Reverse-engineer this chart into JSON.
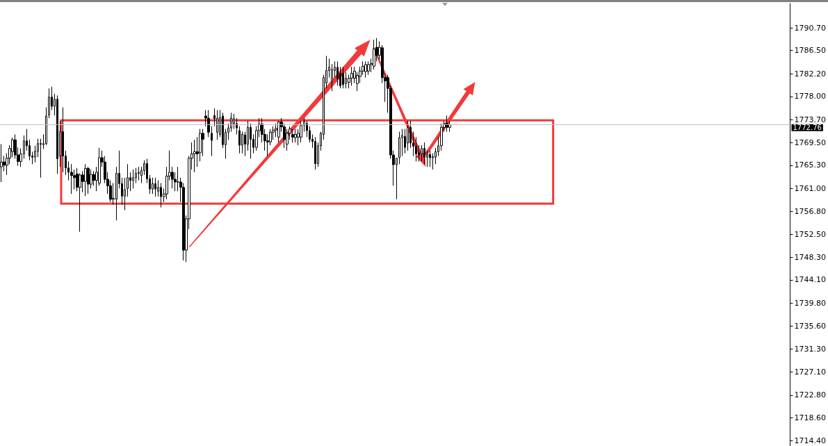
{
  "chart_data": {
    "type": "candlestick",
    "categories": [
      null,
      null,
      null,
      null,
      null,
      null,
      null,
      null,
      null,
      null,
      null,
      null,
      null,
      null,
      null,
      null,
      null,
      null,
      null,
      null,
      null,
      null,
      null,
      null,
      null,
      null,
      null,
      null,
      null,
      null,
      null,
      null,
      null,
      null,
      null,
      null,
      null,
      null,
      null,
      null,
      null,
      null,
      null,
      null,
      null,
      null,
      null,
      null,
      null,
      null,
      null,
      null,
      null,
      null,
      null,
      null,
      null,
      null,
      null,
      null,
      null,
      null,
      null,
      null,
      null,
      null,
      null,
      null,
      null,
      null,
      null,
      null,
      null,
      null,
      null,
      null,
      null,
      null,
      null,
      null,
      null,
      null,
      null,
      null,
      null,
      null,
      null,
      null,
      null,
      null,
      null,
      null,
      null,
      null,
      null,
      null,
      null,
      null,
      null,
      null,
      null,
      null,
      null,
      null,
      null,
      null,
      null,
      null,
      null,
      null,
      null,
      null,
      null,
      null,
      null,
      null,
      null,
      null,
      null,
      null,
      null,
      null,
      null,
      null,
      null,
      null,
      null,
      null,
      null,
      null,
      null,
      null,
      null,
      null,
      null,
      null,
      null,
      null,
      null,
      null,
      null,
      null,
      null,
      null,
      null,
      null,
      null,
      null,
      null,
      null,
      null,
      null,
      null,
      null,
      null,
      null,
      null,
      null,
      null,
      null,
      null,
      null,
      null,
      null,
      null,
      null,
      null,
      null,
      null,
      null,
      null,
      null,
      null,
      null,
      null,
      null,
      null,
      null,
      null,
      null,
      null,
      null,
      null,
      null,
      null,
      null,
      null,
      null,
      null,
      null,
      null,
      null,
      null,
      null,
      null,
      null,
      null,
      null,
      null,
      null,
      null,
      null,
      null,
      null,
      null,
      null,
      null,
      null,
      null,
      null,
      null,
      null,
      null,
      null,
      null,
      null,
      null,
      null,
      null,
      null,
      null,
      null,
      null,
      null,
      null,
      null,
      null,
      null,
      null,
      null,
      null,
      null,
      null,
      null,
      null,
      null,
      null,
      null,
      null,
      null,
      null,
      null,
      null,
      null,
      null,
      null,
      null,
      null,
      null,
      null,
      null,
      null,
      null,
      null,
      null,
      null,
      null,
      null,
      null,
      null,
      null,
      null,
      null,
      null,
      null,
      null,
      null,
      null,
      null,
      null,
      null,
      null,
      null,
      null,
      null,
      null,
      null,
      null,
      null,
      null,
      null,
      null
    ],
    "ohlc": [
      [
        1765.0,
        1769.2,
        1762.2,
        1765.9
      ],
      [
        1765.9,
        1767.0,
        1764.2,
        1765.3
      ],
      [
        1765.3,
        1767.5,
        1763.5,
        1766.6
      ],
      [
        1766.6,
        1769.0,
        1765.5,
        1768.4
      ],
      [
        1767.8,
        1770.4,
        1766.8,
        1770.0
      ],
      [
        1770.0,
        1771.0,
        1766.5,
        1767.2
      ],
      [
        1767.2,
        1768.6,
        1765.2,
        1766.0
      ],
      [
        1766.0,
        1768.4,
        1765.0,
        1767.4
      ],
      [
        1767.4,
        1770.8,
        1766.5,
        1769.8
      ],
      [
        1769.8,
        1772.0,
        1768.0,
        1768.9
      ],
      [
        1768.9,
        1770.0,
        1766.2,
        1767.0
      ],
      [
        1767.0,
        1767.8,
        1765.5,
        1766.8
      ],
      [
        1766.8,
        1768.9,
        1765.8,
        1767.9
      ],
      [
        1767.9,
        1770.2,
        1766.8,
        1769.3
      ],
      [
        1769.3,
        1770.2,
        1763.0,
        1769.2
      ],
      [
        1769.1,
        1771.0,
        1768.3,
        1769.3
      ],
      [
        1769.3,
        1776.0,
        1769.0,
        1774.4
      ],
      [
        1774.6,
        1779.5,
        1774.0,
        1777.9
      ],
      [
        1777.9,
        1779.8,
        1775.5,
        1776.2
      ],
      [
        1776.2,
        1778.5,
        1774.5,
        1777.5
      ],
      [
        1777.5,
        1778.2,
        1763.7,
        1766.5
      ],
      [
        1767.0,
        1773.5,
        1765.0,
        1771.5
      ],
      [
        1771.5,
        1776.0,
        1764.0,
        1767.0
      ],
      [
        1767.0,
        1768.0,
        1763.5,
        1764.8
      ],
      [
        1764.8,
        1766.0,
        1762.5,
        1764.0
      ],
      [
        1764.0,
        1765.5,
        1760.0,
        1763.4
      ],
      [
        1763.4,
        1764.5,
        1760.8,
        1763.0
      ],
      [
        1763.7,
        1764.8,
        1760.5,
        1761.2
      ],
      [
        1761.2,
        1763.8,
        1753.0,
        1763.5
      ],
      [
        1763.5,
        1764.2,
        1760.3,
        1762.3
      ],
      [
        1762.3,
        1765.5,
        1759.6,
        1764.7
      ],
      [
        1764.7,
        1765.0,
        1760.0,
        1761.8
      ],
      [
        1761.8,
        1764.5,
        1761.0,
        1763.6
      ],
      [
        1763.6,
        1764.2,
        1761.5,
        1762.5
      ],
      [
        1762.5,
        1765.0,
        1760.5,
        1764.0
      ],
      [
        1762.0,
        1768.5,
        1761.5,
        1766.7
      ],
      [
        1766.7,
        1768.0,
        1765.0,
        1765.9
      ],
      [
        1765.9,
        1767.0,
        1762.0,
        1762.7
      ],
      [
        1762.7,
        1764.0,
        1760.0,
        1761.5
      ],
      [
        1761.5,
        1762.5,
        1758.5,
        1759.0
      ],
      [
        1759.0,
        1762.0,
        1758.0,
        1759.2
      ],
      [
        1759.0,
        1765.0,
        1755.1,
        1763.8
      ],
      [
        1763.8,
        1768.0,
        1761.0,
        1761.9
      ],
      [
        1761.9,
        1763.0,
        1758.0,
        1759.6
      ],
      [
        1759.6,
        1763.0,
        1757.0,
        1760.8
      ],
      [
        1761.0,
        1765.5,
        1759.5,
        1763.0
      ],
      [
        1763.0,
        1764.0,
        1760.5,
        1762.5
      ],
      [
        1762.5,
        1764.5,
        1761.0,
        1763.0
      ],
      [
        1763.0,
        1764.8,
        1762.0,
        1763.8
      ],
      [
        1763.8,
        1765.0,
        1762.5,
        1764.0
      ],
      [
        1763.4,
        1765.0,
        1762.0,
        1764.3
      ],
      [
        1764.3,
        1766.2,
        1763.5,
        1765.6
      ],
      [
        1765.6,
        1766.5,
        1762.0,
        1762.8
      ],
      [
        1762.8,
        1763.5,
        1760.0,
        1760.9
      ],
      [
        1760.9,
        1763.0,
        1760.0,
        1761.9
      ],
      [
        1761.9,
        1763.0,
        1759.5,
        1760.9
      ],
      [
        1760.5,
        1762.5,
        1759.5,
        1761.2
      ],
      [
        1761.2,
        1762.0,
        1757.5,
        1759.5
      ],
      [
        1759.5,
        1761.0,
        1758.5,
        1760.0
      ],
      [
        1760.0,
        1765.0,
        1759.0,
        1763.3
      ],
      [
        1763.3,
        1768.0,
        1762.5,
        1764.0
      ],
      [
        1764.0,
        1765.0,
        1761.0,
        1762.7
      ],
      [
        1762.7,
        1764.0,
        1760.5,
        1762.2
      ],
      [
        1762.2,
        1765.0,
        1760.5,
        1762.2
      ],
      [
        1762.2,
        1763.0,
        1758.5,
        1761.2
      ],
      [
        1761.2,
        1762.0,
        1747.7,
        1749.6
      ],
      [
        1749.6,
        1756.0,
        1747.4,
        1755.4
      ],
      [
        1755.4,
        1767.0,
        1753.5,
        1766.6
      ],
      [
        1766.6,
        1769.5,
        1764.5,
        1767.4
      ],
      [
        1767.4,
        1770.0,
        1764.0,
        1767.8
      ],
      [
        1767.8,
        1770.5,
        1765.0,
        1767.4
      ],
      [
        1767.6,
        1772.0,
        1766.0,
        1771.2
      ],
      [
        1771.2,
        1772.0,
        1767.0,
        1770.1
      ],
      [
        1774.4,
        1775.5,
        1772.5,
        1774.0
      ],
      [
        1774.0,
        1775.5,
        1770.5,
        1771.4
      ],
      [
        1771.2,
        1772.5,
        1767.0,
        1769.9
      ],
      [
        1774.5,
        1775.8,
        1772.5,
        1773.9
      ],
      [
        1771.4,
        1775.5,
        1770.0,
        1774.0
      ],
      [
        1771.0,
        1775.5,
        1770.5,
        1774.1
      ],
      [
        1774.4,
        1775.0,
        1768.5,
        1769.1
      ],
      [
        1769.1,
        1772.0,
        1766.5,
        1771.4
      ],
      [
        1771.4,
        1773.0,
        1770.0,
        1772.2
      ],
      [
        1772.2,
        1775.0,
        1771.5,
        1774.0
      ],
      [
        1773.0,
        1774.8,
        1772.0,
        1773.9
      ],
      [
        1773.0,
        1774.0,
        1771.0,
        1772.2
      ],
      [
        1771.7,
        1772.5,
        1767.5,
        1769.0
      ],
      [
        1769.0,
        1771.5,
        1767.5,
        1771.0
      ],
      [
        1770.9,
        1771.5,
        1767.0,
        1769.2
      ],
      [
        1769.2,
        1773.5,
        1768.0,
        1772.3
      ],
      [
        1772.3,
        1773.0,
        1766.5,
        1770.1
      ],
      [
        1770.1,
        1771.0,
        1767.5,
        1768.6
      ],
      [
        1768.6,
        1772.5,
        1768.0,
        1771.7
      ],
      [
        1771.7,
        1774.0,
        1770.5,
        1772.9
      ],
      [
        1772.9,
        1774.0,
        1769.5,
        1771.0
      ],
      [
        1771.0,
        1772.0,
        1768.0,
        1769.8
      ],
      [
        1769.8,
        1771.0,
        1767.0,
        1769.6
      ],
      [
        1769.6,
        1772.0,
        1769.0,
        1771.4
      ],
      [
        1771.4,
        1772.5,
        1770.0,
        1771.8
      ],
      [
        1771.8,
        1773.0,
        1770.5,
        1772.1
      ],
      [
        1770.5,
        1773.5,
        1769.5,
        1773.3
      ],
      [
        1773.3,
        1774.0,
        1771.5,
        1772.4
      ],
      [
        1772.4,
        1773.0,
        1768.5,
        1770.1
      ],
      [
        1769.2,
        1772.0,
        1768.0,
        1771.2
      ],
      [
        1771.2,
        1772.5,
        1770.0,
        1772.0
      ],
      [
        1771.0,
        1772.0,
        1769.5,
        1770.5
      ],
      [
        1770.4,
        1772.0,
        1769.5,
        1771.0
      ],
      [
        1770.5,
        1772.0,
        1769.0,
        1771.2
      ],
      [
        1770.5,
        1773.5,
        1769.5,
        1772.7
      ],
      [
        1772.7,
        1774.0,
        1771.5,
        1773.4
      ],
      [
        1773.0,
        1773.5,
        1770.5,
        1771.7
      ],
      [
        1771.7,
        1772.5,
        1769.5,
        1770.1
      ],
      [
        1770.1,
        1771.0,
        1768.5,
        1769.7
      ],
      [
        1769.7,
        1770.5,
        1764.5,
        1765.6
      ],
      [
        1765.6,
        1769.5,
        1765.0,
        1768.9
      ],
      [
        1768.9,
        1771.5,
        1768.0,
        1771.2
      ],
      [
        1771.0,
        1782.0,
        1770.0,
        1781.5
      ],
      [
        1780.5,
        1785.5,
        1779.5,
        1782.8
      ],
      [
        1782.8,
        1785.0,
        1781.5,
        1783.4
      ],
      [
        1780.8,
        1784.0,
        1779.0,
        1783.0
      ],
      [
        1782.8,
        1784.5,
        1781.5,
        1783.4
      ],
      [
        1783.4,
        1784.5,
        1780.0,
        1781.3
      ],
      [
        1782.3,
        1783.5,
        1779.5,
        1780.0
      ],
      [
        1782.3,
        1783.5,
        1779.5,
        1780.2
      ],
      [
        1780.4,
        1782.5,
        1779.5,
        1781.4
      ],
      [
        1780.6,
        1782.0,
        1779.5,
        1781.4
      ],
      [
        1781.4,
        1783.5,
        1780.0,
        1782.3
      ],
      [
        1781.4,
        1783.5,
        1780.5,
        1782.7
      ],
      [
        1780.4,
        1782.5,
        1779.0,
        1781.9
      ],
      [
        1781.7,
        1783.5,
        1780.5,
        1782.7
      ],
      [
        1782.7,
        1784.5,
        1782.0,
        1783.6
      ],
      [
        1782.6,
        1784.5,
        1781.5,
        1783.9
      ],
      [
        1782.7,
        1784.5,
        1782.0,
        1783.9
      ],
      [
        1783.9,
        1785.0,
        1782.5,
        1784.1
      ],
      [
        1783.6,
        1788.5,
        1783.0,
        1786.8
      ],
      [
        1787.1,
        1788.8,
        1784.5,
        1785.6
      ],
      [
        1785.6,
        1788.2,
        1784.8,
        1787.1
      ],
      [
        1787.0,
        1787.5,
        1780.5,
        1781.5
      ],
      [
        1781.5,
        1782.3,
        1777.0,
        1780.9
      ],
      [
        1781.5,
        1782.0,
        1775.0,
        1779.5
      ],
      [
        1779.5,
        1780.0,
        1766.5,
        1767.2
      ],
      [
        1767.2,
        1768.0,
        1761.5,
        1765.4
      ],
      [
        1765.4,
        1766.6,
        1759.0,
        1766.6
      ],
      [
        1766.7,
        1771.5,
        1765.5,
        1770.4
      ],
      [
        1770.4,
        1772.0,
        1767.0,
        1770.8
      ],
      [
        1770.6,
        1772.0,
        1767.5,
        1768.6
      ],
      [
        1769.4,
        1773.5,
        1768.0,
        1772.3
      ],
      [
        1772.3,
        1773.5,
        1768.5,
        1769.4
      ],
      [
        1769.4,
        1771.5,
        1767.0,
        1768.8
      ],
      [
        1768.8,
        1770.5,
        1766.0,
        1767.4
      ],
      [
        1767.6,
        1769.0,
        1766.0,
        1767.2
      ],
      [
        1767.4,
        1769.0,
        1766.0,
        1768.4
      ],
      [
        1768.4,
        1769.5,
        1765.5,
        1766.8
      ],
      [
        1766.8,
        1768.0,
        1765.0,
        1767.3
      ],
      [
        1767.3,
        1768.0,
        1765.0,
        1766.7
      ],
      [
        1766.7,
        1767.5,
        1764.5,
        1766.9
      ],
      [
        1766.8,
        1768.5,
        1765.5,
        1767.8
      ],
      [
        1767.8,
        1770.5,
        1767.0,
        1768.9
      ],
      [
        1768.9,
        1773.0,
        1768.0,
        1772.3
      ],
      [
        1772.3,
        1773.5,
        1771.5,
        1772.9
      ],
      [
        1773.0,
        1774.5,
        1771.5,
        1772.3
      ],
      [
        1772.3,
        1773.5,
        1771.5,
        1772.8
      ],
      null,
      null,
      null,
      null,
      null,
      null,
      null,
      null,
      null,
      null,
      null,
      null,
      null,
      null,
      null,
      null,
      null,
      null,
      null,
      null,
      null,
      null,
      null,
      null,
      null,
      null,
      null,
      null,
      null,
      null,
      null,
      null,
      null,
      null,
      null,
      null,
      null,
      null,
      null,
      null,
      null,
      null,
      null,
      null,
      null,
      null,
      null,
      null,
      null,
      null,
      null,
      null,
      null,
      null,
      null,
      null,
      null,
      null,
      null,
      null,
      null,
      null,
      null,
      null,
      null,
      null,
      null,
      null,
      null,
      null,
      null,
      null,
      null,
      null,
      null,
      null,
      null,
      null,
      null,
      null,
      null,
      null,
      null,
      null,
      null,
      null,
      null,
      null,
      null,
      null,
      null,
      null,
      null,
      null,
      null,
      null,
      null,
      null,
      null,
      null,
      null,
      null,
      null,
      null,
      null,
      null,
      null,
      null,
      null,
      null,
      null,
      null,
      null,
      null,
      null,
      null,
      null,
      null,
      null,
      null,
      null
    ],
    "ylim": [
      1713.4,
      1795.2
    ],
    "yticks": [
      {
        "value": 1790.7,
        "label": "1790.70"
      },
      {
        "value": 1786.5,
        "label": "1786.50"
      },
      {
        "value": 1782.2,
        "label": "1782.20"
      },
      {
        "value": 1778.0,
        "label": "1778.00"
      },
      {
        "value": 1773.7,
        "label": "1773.70"
      },
      {
        "value": 1769.5,
        "label": "1769.50"
      },
      {
        "value": 1765.3,
        "label": "1765.30"
      },
      {
        "value": 1761.0,
        "label": "1761.00"
      },
      {
        "value": 1756.8,
        "label": "1756.80"
      },
      {
        "value": 1752.5,
        "label": "1752.50"
      },
      {
        "value": 1748.3,
        "label": "1748.30"
      },
      {
        "value": 1744.1,
        "label": "1744.10"
      },
      {
        "value": 1739.8,
        "label": "1739.80"
      },
      {
        "value": 1735.6,
        "label": "1735.60"
      },
      {
        "value": 1731.3,
        "label": "1731.30"
      },
      {
        "value": 1727.1,
        "label": "1727.10"
      },
      {
        "value": 1722.8,
        "label": "1722.80"
      },
      {
        "value": 1718.6,
        "label": "1718.60"
      },
      {
        "value": 1714.4,
        "label": "1714.40"
      }
    ],
    "ref_lines": [
      {
        "axis": "y",
        "value": 1772.76,
        "label": "1772.76",
        "color": "#c0c0c0"
      }
    ],
    "tick_labels": "y"
  }
}
